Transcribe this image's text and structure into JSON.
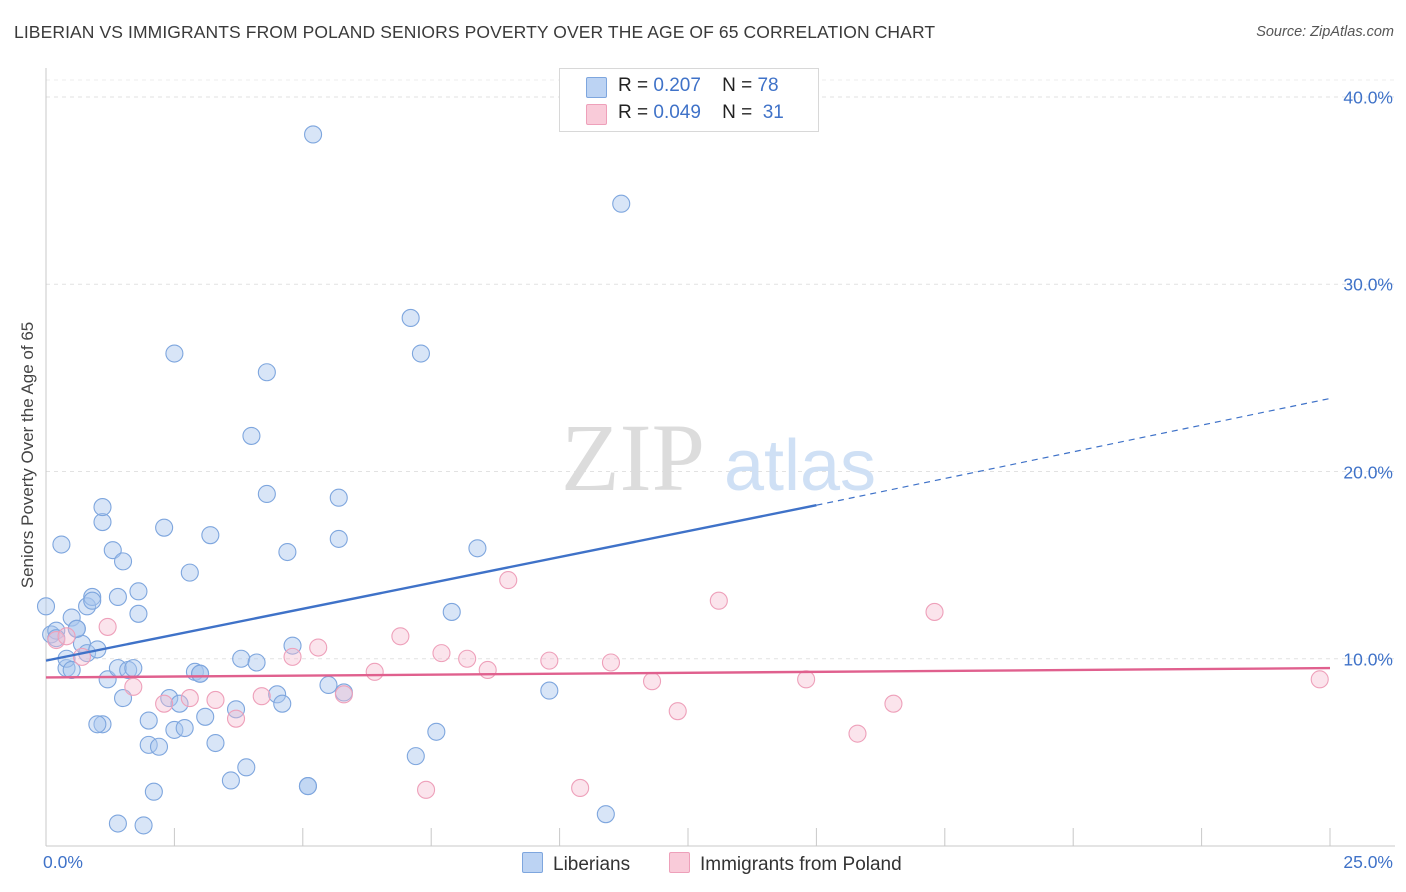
{
  "title": "LIBERIAN VS IMMIGRANTS FROM POLAND SENIORS POVERTY OVER THE AGE OF 65 CORRELATION CHART",
  "source": "Source: ZipAtlas.com",
  "watermark": {
    "zip": "ZIP",
    "atlas": "atlas"
  },
  "legend": {
    "rows": [
      {
        "r_label": "R =",
        "r_value": "0.207",
        "n_label": "N =",
        "n_value": "78"
      },
      {
        "r_label": "R =",
        "r_value": "0.049",
        "n_label": "N =",
        "n_value": "31"
      }
    ]
  },
  "chart_data": {
    "type": "scatter",
    "title": "LIBERIAN VS IMMIGRANTS FROM POLAND SENIORS POVERTY OVER THE AGE OF 65 CORRELATION CHART",
    "xlabel": "",
    "ylabel": "Seniors Poverty Over the Age of 65",
    "xlim": [
      0,
      25
    ],
    "ylim": [
      0,
      40
    ],
    "x_tick_labels": [
      "0.0%",
      "25.0%"
    ],
    "y_ticks": [
      10,
      20,
      30,
      40
    ],
    "y_tick_labels": [
      "10.0%",
      "20.0%",
      "30.0%",
      "40.0%"
    ],
    "grid": true,
    "legend_position": "top-center",
    "colors": {
      "blue": "#3f72c8",
      "blue_fill": "#a8c6ee",
      "pink": "#e0608e",
      "pink_fill": "#f6bcd0"
    },
    "series": [
      {
        "name": "Liberians",
        "color": "#3f72c8",
        "r": 0.207,
        "n": 78,
        "trend": {
          "x0": 0.0,
          "y0": 9.9,
          "x1": 15.0,
          "y1": 18.2,
          "dash_to_x": 25.0,
          "dash_to_y": 23.9
        },
        "points": [
          [
            0.0,
            12.8
          ],
          [
            0.1,
            11.3
          ],
          [
            0.2,
            11.5
          ],
          [
            0.2,
            11.1
          ],
          [
            0.3,
            16.1
          ],
          [
            0.4,
            9.5
          ],
          [
            0.4,
            10.0
          ],
          [
            0.5,
            9.4
          ],
          [
            0.5,
            12.2
          ],
          [
            0.6,
            11.6
          ],
          [
            0.7,
            10.8
          ],
          [
            0.8,
            12.8
          ],
          [
            0.8,
            10.3
          ],
          [
            0.9,
            13.3
          ],
          [
            0.9,
            13.1
          ],
          [
            1.0,
            10.5
          ],
          [
            1.1,
            17.3
          ],
          [
            1.1,
            6.5
          ],
          [
            1.0,
            6.5
          ],
          [
            1.1,
            18.1
          ],
          [
            1.2,
            8.9
          ],
          [
            1.3,
            15.8
          ],
          [
            1.4,
            9.5
          ],
          [
            1.4,
            13.3
          ],
          [
            1.5,
            15.2
          ],
          [
            1.5,
            7.9
          ],
          [
            1.6,
            9.4
          ],
          [
            1.7,
            9.5
          ],
          [
            1.8,
            12.4
          ],
          [
            1.8,
            13.6
          ],
          [
            2.0,
            6.7
          ],
          [
            2.0,
            5.4
          ],
          [
            2.1,
            2.9
          ],
          [
            2.2,
            5.3
          ],
          [
            2.3,
            17.0
          ],
          [
            2.4,
            7.9
          ],
          [
            2.5,
            6.2
          ],
          [
            2.5,
            26.3
          ],
          [
            2.6,
            7.6
          ],
          [
            2.7,
            6.3
          ],
          [
            2.8,
            14.6
          ],
          [
            2.9,
            9.3
          ],
          [
            3.0,
            9.2
          ],
          [
            3.1,
            6.9
          ],
          [
            3.2,
            16.6
          ],
          [
            3.3,
            5.5
          ],
          [
            3.6,
            3.5
          ],
          [
            3.7,
            7.3
          ],
          [
            3.8,
            10.0
          ],
          [
            3.9,
            4.2
          ],
          [
            4.0,
            21.9
          ],
          [
            4.1,
            9.8
          ],
          [
            4.3,
            18.8
          ],
          [
            4.3,
            25.3
          ],
          [
            4.5,
            8.1
          ],
          [
            4.6,
            7.6
          ],
          [
            4.7,
            15.7
          ],
          [
            4.8,
            10.7
          ],
          [
            5.1,
            3.2
          ],
          [
            5.2,
            38.0
          ],
          [
            5.5,
            8.6
          ],
          [
            5.7,
            18.6
          ],
          [
            5.7,
            16.4
          ],
          [
            5.8,
            8.2
          ],
          [
            7.1,
            28.2
          ],
          [
            7.2,
            4.8
          ],
          [
            7.3,
            26.3
          ],
          [
            7.6,
            6.1
          ],
          [
            7.9,
            12.5
          ],
          [
            8.4,
            15.9
          ],
          [
            9.8,
            8.3
          ],
          [
            10.9,
            1.7
          ],
          [
            11.2,
            34.3
          ],
          [
            1.4,
            1.2
          ],
          [
            1.9,
            1.1
          ],
          [
            5.1,
            3.2
          ],
          [
            3.0,
            9.2
          ],
          [
            0.6,
            11.6
          ]
        ]
      },
      {
        "name": "Immigrants from Poland",
        "color": "#e0608e",
        "r": 0.049,
        "n": 31,
        "trend": {
          "x0": 0.0,
          "y0": 9.0,
          "x1": 25.0,
          "y1": 9.5
        },
        "points": [
          [
            0.2,
            11.0
          ],
          [
            0.4,
            11.2
          ],
          [
            0.7,
            10.1
          ],
          [
            1.2,
            11.7
          ],
          [
            1.7,
            8.5
          ],
          [
            2.3,
            7.6
          ],
          [
            2.8,
            7.9
          ],
          [
            3.3,
            7.8
          ],
          [
            3.7,
            6.8
          ],
          [
            4.2,
            8.0
          ],
          [
            4.8,
            10.1
          ],
          [
            5.3,
            10.6
          ],
          [
            5.8,
            8.1
          ],
          [
            6.4,
            9.3
          ],
          [
            6.9,
            11.2
          ],
          [
            7.4,
            3.0
          ],
          [
            7.7,
            10.3
          ],
          [
            8.2,
            10.0
          ],
          [
            8.6,
            9.4
          ],
          [
            9.0,
            14.2
          ],
          [
            9.8,
            9.9
          ],
          [
            10.4,
            3.1
          ],
          [
            11.0,
            9.8
          ],
          [
            11.8,
            8.8
          ],
          [
            12.3,
            7.2
          ],
          [
            13.1,
            13.1
          ],
          [
            14.8,
            8.9
          ],
          [
            15.8,
            6.0
          ],
          [
            16.5,
            7.6
          ],
          [
            17.3,
            12.5
          ],
          [
            24.8,
            8.9
          ]
        ]
      }
    ]
  }
}
